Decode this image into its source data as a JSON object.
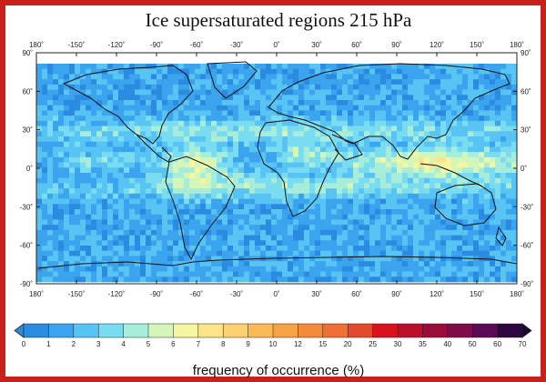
{
  "map": {
    "title": "Ice supersaturated regions 215 hPa",
    "lon_ticks": [
      "180˚",
      "-150˚",
      "-120˚",
      "-90˚",
      "-60˚",
      "-30˚",
      "0˚",
      "30˚",
      "60˚",
      "90˚",
      "120˚",
      "150˚",
      "180˚"
    ],
    "lat_ticks": [
      "90˚",
      "60˚",
      "30˚",
      "0˚",
      "-30˚",
      "-60˚",
      "-90˚"
    ],
    "colorbar": {
      "label": "frequency of occurrence (%)",
      "ticks": [
        "0",
        "1",
        "2",
        "3",
        "4",
        "5",
        "6",
        "7",
        "8",
        "9",
        "10",
        "12",
        "15",
        "20",
        "25",
        "30",
        "35",
        "40",
        "50",
        "60",
        "70"
      ],
      "colors": [
        "#2a8be0",
        "#3aa4ee",
        "#58c4f4",
        "#7adcf0",
        "#a8ecda",
        "#d4f6b8",
        "#f4f6a2",
        "#fbe48a",
        "#fdd070",
        "#fbba58",
        "#f7a247",
        "#f38a3c",
        "#ee7036",
        "#e24a2c",
        "#d8121f",
        "#ba0f2b",
        "#9a0c3a",
        "#7d0c48",
        "#5a0a55",
        "#2c063e"
      ],
      "under_color": "#2a8be0",
      "over_color": "#1a0530"
    }
  }
}
